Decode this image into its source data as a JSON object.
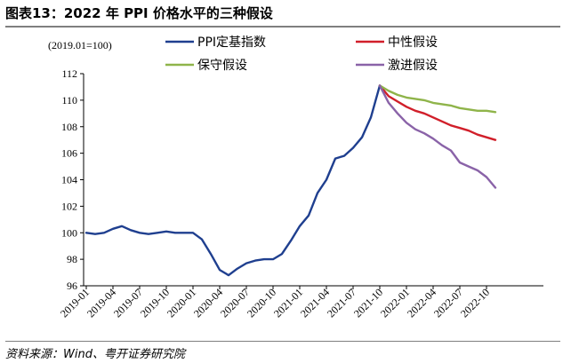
{
  "title": "图表13：2022 年 PPI 价格水平的三种假设",
  "source": "资料来源：Wind、粤开证券研究院",
  "chart_data": {
    "type": "line",
    "unit_label": "(2019.01=100)",
    "ylim": [
      96,
      112
    ],
    "yticks": [
      96,
      98,
      100,
      102,
      104,
      106,
      108,
      110,
      112
    ],
    "x_tick_labels": [
      "2019-01",
      "2019-04",
      "2019-07",
      "2019-10",
      "2020-01",
      "2020-04",
      "2020-07",
      "2020-10",
      "2021-01",
      "2021-04",
      "2021-07",
      "2021-10",
      "2022-01",
      "2022-04",
      "2022-07",
      "2022-10"
    ],
    "legend_position": "top",
    "series": [
      {
        "name": "PPI定基指数",
        "color": "#1f3f8f",
        "start_index": 0,
        "values": [
          100.0,
          99.9,
          100.0,
          100.3,
          100.5,
          100.2,
          100.0,
          99.9,
          100.0,
          100.1,
          100.0,
          100.0,
          100.0,
          99.5,
          98.4,
          97.2,
          96.8,
          97.3,
          97.7,
          97.9,
          98.0,
          98.0,
          98.4,
          99.4,
          100.5,
          101.3,
          103.0,
          104.0,
          105.6,
          105.8,
          106.4,
          107.2,
          108.7,
          111.1
        ]
      },
      {
        "name": "中性假设",
        "color": "#d11f2a",
        "start_index": 33,
        "values": [
          111.1,
          110.3,
          109.9,
          109.5,
          109.2,
          109.0,
          108.7,
          108.4,
          108.1,
          107.9,
          107.7,
          107.4,
          107.2,
          107.0
        ]
      },
      {
        "name": "保守假设",
        "color": "#8fb44a",
        "start_index": 33,
        "values": [
          111.1,
          110.7,
          110.4,
          110.2,
          110.1,
          110.0,
          109.8,
          109.7,
          109.6,
          109.4,
          109.3,
          109.2,
          109.2,
          109.1
        ]
      },
      {
        "name": "激进假设",
        "color": "#8a63a8",
        "start_index": 33,
        "values": [
          111.1,
          109.8,
          109.0,
          108.3,
          107.8,
          107.5,
          107.1,
          106.6,
          106.2,
          105.3,
          105.0,
          104.7,
          104.2,
          103.4
        ]
      }
    ]
  }
}
